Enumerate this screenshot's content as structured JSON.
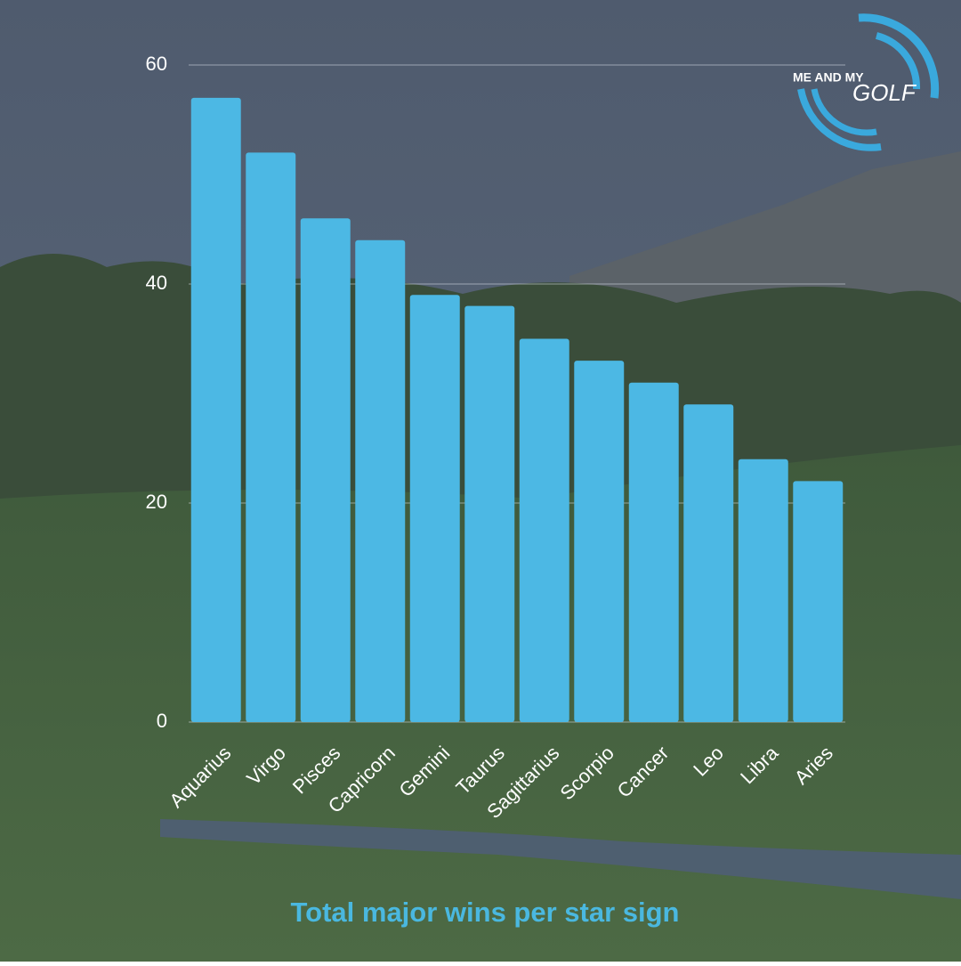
{
  "chart_data": {
    "type": "bar",
    "title": "Total major wins per star sign",
    "categories": [
      "Aquarius",
      "Virgo",
      "Pisces",
      "Capricorn",
      "Gemini",
      "Taurus",
      "Sagittarius",
      "Scorpio",
      "Cancer",
      "Leo",
      "Libra",
      "Aries"
    ],
    "values": [
      57,
      52,
      46,
      44,
      39,
      38,
      35,
      33,
      31,
      29,
      24,
      22
    ],
    "color": "#4cb8e4",
    "ylim": [
      0,
      60
    ],
    "yticks": [
      0,
      20,
      40,
      60
    ],
    "grid": true
  },
  "logo": {
    "line1": "ME AND MY",
    "line2": "GOLF"
  }
}
